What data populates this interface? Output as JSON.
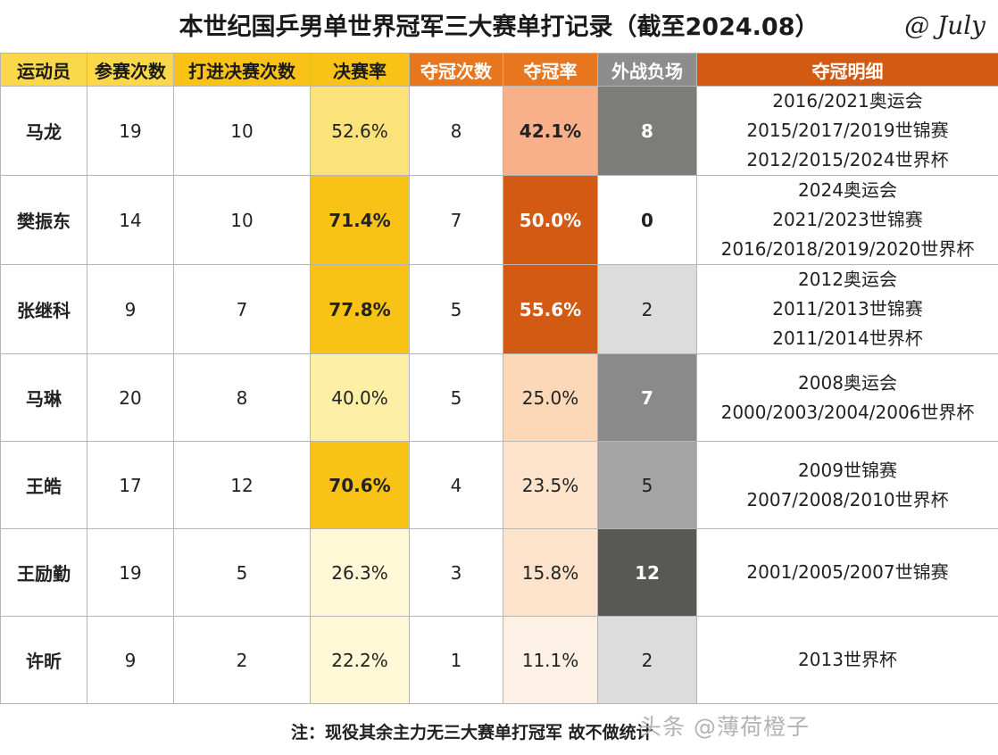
{
  "title": "本世纪国乒男单世界冠军三大赛单打记录（截至2024.08）",
  "signature": "@ July",
  "headers": {
    "athlete": "运动员",
    "entries": "参赛次数",
    "finals": "打进决赛次数",
    "final_rate": "决赛率",
    "titles": "夺冠次数",
    "title_rate": "夺冠率",
    "foreign_losses": "外战负场",
    "title_details": "夺冠明细"
  },
  "colors": {
    "final_rate_scale": [
      "#fff8d6",
      "#fdf0a6",
      "#fbe27a",
      "#f8c316"
    ],
    "title_rate_scale": [
      "#fdf1e6",
      "#fde3cc",
      "#fcd7b8",
      "#f8b08a",
      "#d35a12"
    ],
    "loss_scale": [
      "#dcdcdc",
      "#8a8a8a",
      "#6e6e6e",
      "#555555"
    ]
  },
  "rows": [
    {
      "name": "马龙",
      "entries": "19",
      "finals": "10",
      "final_rate": "52.6%",
      "titles": "8",
      "title_rate": "42.1%",
      "losses": "8",
      "details": [
        "2016/2021奥运会",
        "2015/2017/2019世锦赛",
        "2012/2015/2024世界杯"
      ]
    },
    {
      "name": "樊振东",
      "entries": "14",
      "finals": "10",
      "final_rate": "71.4%",
      "titles": "7",
      "title_rate": "50.0%",
      "losses": "0",
      "details": [
        "2024奥运会",
        "2021/2023世锦赛",
        "2016/2018/2019/2020世界杯"
      ]
    },
    {
      "name": "张继科",
      "entries": "9",
      "finals": "7",
      "final_rate": "77.8%",
      "titles": "5",
      "title_rate": "55.6%",
      "losses": "2",
      "details": [
        "2012奥运会",
        "2011/2013世锦赛",
        "2011/2014世界杯"
      ]
    },
    {
      "name": "马琳",
      "entries": "20",
      "finals": "8",
      "final_rate": "40.0%",
      "titles": "5",
      "title_rate": "25.0%",
      "losses": "7",
      "details": [
        "2008奥运会",
        "2000/2003/2004/2006世界杯"
      ]
    },
    {
      "name": "王皓",
      "entries": "17",
      "finals": "12",
      "final_rate": "70.6%",
      "titles": "4",
      "title_rate": "23.5%",
      "losses": "5",
      "details": [
        "2009世锦赛",
        "2007/2008/2010世界杯"
      ]
    },
    {
      "name": "王励勤",
      "entries": "19",
      "finals": "5",
      "final_rate": "26.3%",
      "titles": "3",
      "title_rate": "15.8%",
      "losses": "12",
      "details": [
        "2001/2005/2007世锦赛"
      ]
    },
    {
      "name": "许昕",
      "entries": "9",
      "finals": "2",
      "final_rate": "22.2%",
      "titles": "1",
      "title_rate": "11.1%",
      "losses": "2",
      "details": [
        "2013世界杯"
      ]
    }
  ],
  "footer_note": "注：现役其余主力无三大赛单打冠军 故不做统计",
  "watermark": "头条 @薄荷橙子"
}
